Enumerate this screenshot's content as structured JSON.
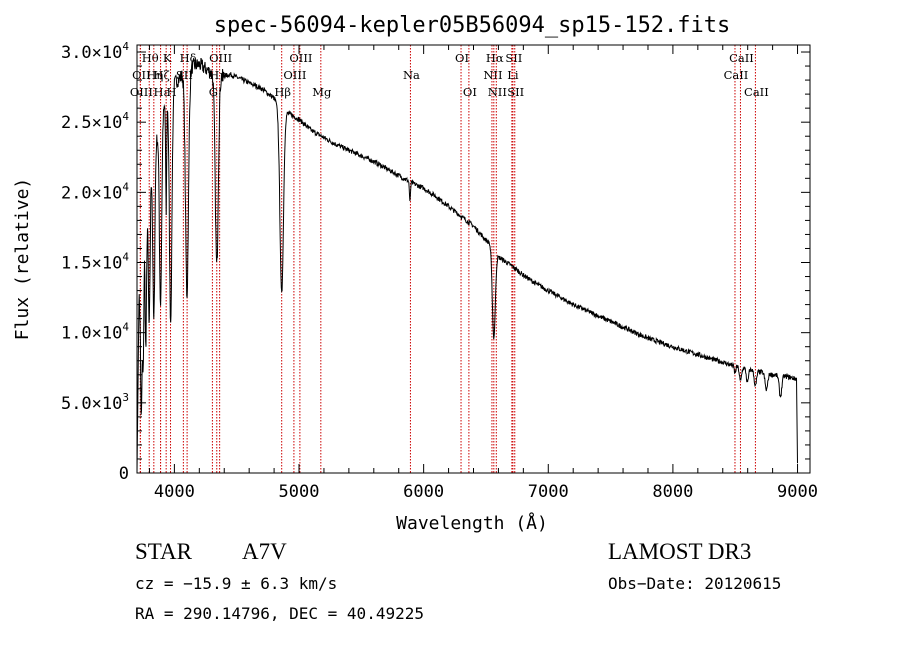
{
  "chart_data": {
    "type": "line",
    "title": "spec-56094-kepler05B56094_sp15-152.fits",
    "xlabel": "Wavelength (Å)",
    "ylabel": "Flux (relative)",
    "xlim": [
      3700,
      9100
    ],
    "ylim": [
      0,
      30500
    ],
    "x_ticks": [
      4000,
      5000,
      6000,
      7000,
      8000,
      9000
    ],
    "x_tick_labels": [
      "4000",
      "5000",
      "6000",
      "7000",
      "8000",
      "9000"
    ],
    "y_ticks": [
      0,
      5000,
      10000,
      15000,
      20000,
      25000,
      30000
    ],
    "y_tick_labels": [
      {
        "mant": "0",
        "exp": ""
      },
      {
        "mant": "5.0×10",
        "exp": "3"
      },
      {
        "mant": "1.0×10",
        "exp": "4"
      },
      {
        "mant": "1.5×10",
        "exp": "4"
      },
      {
        "mant": "2.0×10",
        "exp": "4"
      },
      {
        "mant": "2.5×10",
        "exp": "4"
      },
      {
        "mant": "3.0×10",
        "exp": "4"
      }
    ],
    "spectral_lines": [
      {
        "label": "Hθ",
        "wavelength": 3798,
        "row": 1
      },
      {
        "label": "OII",
        "wavelength": 3727,
        "row": 2
      },
      {
        "label": "OIII",
        "wavelength": 3727,
        "row": 3
      },
      {
        "label": "Hη",
        "wavelength": 3835,
        "row": 2
      },
      {
        "label": "Hε",
        "wavelength": 3889,
        "row": 3
      },
      {
        "label": "K",
        "wavelength": 3934,
        "row": 1
      },
      {
        "label": "Hζ",
        "wavelength": 3889,
        "row": 2
      },
      {
        "label": "H",
        "wavelength": 3969,
        "row": 3
      },
      {
        "label": "Hδ",
        "wavelength": 4102,
        "row": 1
      },
      {
        "label": "SII",
        "wavelength": 4072,
        "row": 2
      },
      {
        "label": "Hγ",
        "wavelength": 4340,
        "row": 2
      },
      {
        "label": "OIII",
        "wavelength": 4363,
        "row": 1
      },
      {
        "label": "G",
        "wavelength": 4305,
        "row": 3
      },
      {
        "label": "Hβ",
        "wavelength": 4861,
        "row": 3
      },
      {
        "label": "OIII",
        "wavelength": 5007,
        "row": 1
      },
      {
        "label": "OIII",
        "wavelength": 4959,
        "row": 2
      },
      {
        "label": "Mg",
        "wavelength": 5175,
        "row": 3
      },
      {
        "label": "Na",
        "wavelength": 5894,
        "row": 2
      },
      {
        "label": "OI",
        "wavelength": 6300,
        "row": 1
      },
      {
        "label": "OI",
        "wavelength": 6363,
        "row": 3
      },
      {
        "label": "Hα",
        "wavelength": 6563,
        "row": 1
      },
      {
        "label": "NII",
        "wavelength": 6548,
        "row": 2
      },
      {
        "label": "NII",
        "wavelength": 6583,
        "row": 3
      },
      {
        "label": "SII",
        "wavelength": 6716,
        "row": 1
      },
      {
        "label": "Li",
        "wavelength": 6708,
        "row": 2
      },
      {
        "label": "SII",
        "wavelength": 6731,
        "row": 3
      },
      {
        "label": "CaII",
        "wavelength": 8542,
        "row": 1
      },
      {
        "label": "CaII",
        "wavelength": 8498,
        "row": 2
      },
      {
        "label": "CaII",
        "wavelength": 8662,
        "row": 3
      }
    ],
    "continuum": [
      [
        3720,
        12500
      ],
      [
        3760,
        18000
      ],
      [
        3800,
        21000
      ],
      [
        3850,
        23500
      ],
      [
        3900,
        25500
      ],
      [
        3950,
        27000
      ],
      [
        4000,
        27800
      ],
      [
        4050,
        28200
      ],
      [
        4100,
        28700
      ],
      [
        4150,
        29000
      ],
      [
        4200,
        29100
      ],
      [
        4250,
        28800
      ],
      [
        4300,
        28500
      ],
      [
        4350,
        28200
      ],
      [
        4400,
        28300
      ],
      [
        4450,
        28400
      ],
      [
        4500,
        28200
      ],
      [
        4600,
        27800
      ],
      [
        4700,
        27400
      ],
      [
        4800,
        26700
      ],
      [
        4850,
        25800
      ],
      [
        4900,
        25700
      ],
      [
        5000,
        25200
      ],
      [
        5100,
        24400
      ],
      [
        5200,
        23900
      ],
      [
        5300,
        23400
      ],
      [
        5400,
        23000
      ],
      [
        5500,
        22600
      ],
      [
        5600,
        22200
      ],
      [
        5700,
        21700
      ],
      [
        5800,
        21200
      ],
      [
        5900,
        20700
      ],
      [
        6000,
        20300
      ],
      [
        6100,
        19700
      ],
      [
        6200,
        19000
      ],
      [
        6300,
        18300
      ],
      [
        6400,
        17600
      ],
      [
        6500,
        16600
      ],
      [
        6560,
        16200
      ],
      [
        6600,
        15400
      ],
      [
        6700,
        14800
      ],
      [
        6800,
        14100
      ],
      [
        6900,
        13500
      ],
      [
        7000,
        13000
      ],
      [
        7100,
        12500
      ],
      [
        7200,
        12000
      ],
      [
        7300,
        11600
      ],
      [
        7400,
        11200
      ],
      [
        7500,
        10800
      ],
      [
        7600,
        10400
      ],
      [
        7700,
        10000
      ],
      [
        7800,
        9600
      ],
      [
        7900,
        9300
      ],
      [
        8000,
        9000
      ],
      [
        8100,
        8700
      ],
      [
        8200,
        8450
      ],
      [
        8300,
        8150
      ],
      [
        8400,
        7900
      ],
      [
        8500,
        7600
      ],
      [
        8600,
        7400
      ],
      [
        8700,
        7200
      ],
      [
        8800,
        7000
      ],
      [
        8900,
        6900
      ],
      [
        8990,
        6700
      ]
    ],
    "absorption": [
      {
        "wavelength": 3735,
        "depth": 10500,
        "width": 6
      },
      {
        "wavelength": 3750,
        "depth": 9000,
        "width": 5
      },
      {
        "wavelength": 3771,
        "depth": 10000,
        "width": 6
      },
      {
        "wavelength": 3798,
        "depth": 10500,
        "width": 7
      },
      {
        "wavelength": 3835,
        "depth": 12000,
        "width": 8
      },
      {
        "wavelength": 3889,
        "depth": 13000,
        "width": 9
      },
      {
        "wavelength": 3934,
        "depth": 8000,
        "width": 4
      },
      {
        "wavelength": 3970,
        "depth": 16500,
        "width": 10
      },
      {
        "wavelength": 4101,
        "depth": 16000,
        "width": 12
      },
      {
        "wavelength": 4340,
        "depth": 13500,
        "width": 12
      },
      {
        "wavelength": 4861,
        "depth": 13000,
        "width": 14
      },
      {
        "wavelength": 5890,
        "depth": 1500,
        "width": 4
      },
      {
        "wavelength": 6563,
        "depth": 6500,
        "width": 12
      },
      {
        "wavelength": 8498,
        "depth": 500,
        "width": 6
      },
      {
        "wavelength": 8542,
        "depth": 1000,
        "width": 8
      },
      {
        "wavelength": 8598,
        "depth": 1000,
        "width": 8
      },
      {
        "wavelength": 8662,
        "depth": 1100,
        "width": 9
      },
      {
        "wavelength": 8750,
        "depth": 1200,
        "width": 10
      },
      {
        "wavelength": 8863,
        "depth": 1500,
        "width": 10
      }
    ],
    "noise_amplitude": 350,
    "edge_drops": [
      {
        "wavelength": 3700,
        "flux": 0
      },
      {
        "wavelength": 9000,
        "flux": 700
      }
    ]
  },
  "info": {
    "object_class": "STAR",
    "subclass": "A7V",
    "survey": "LAMOST DR3",
    "redshift": "cz = −15.9 ± 6.3 km/s",
    "obs_date": "Obs−Date: 20120615",
    "coords": "RA = 290.14796, DEC =  40.49225"
  },
  "colors": {
    "spectrum": "#000000",
    "line_markers": "#cc0000",
    "axes": "#000000"
  }
}
